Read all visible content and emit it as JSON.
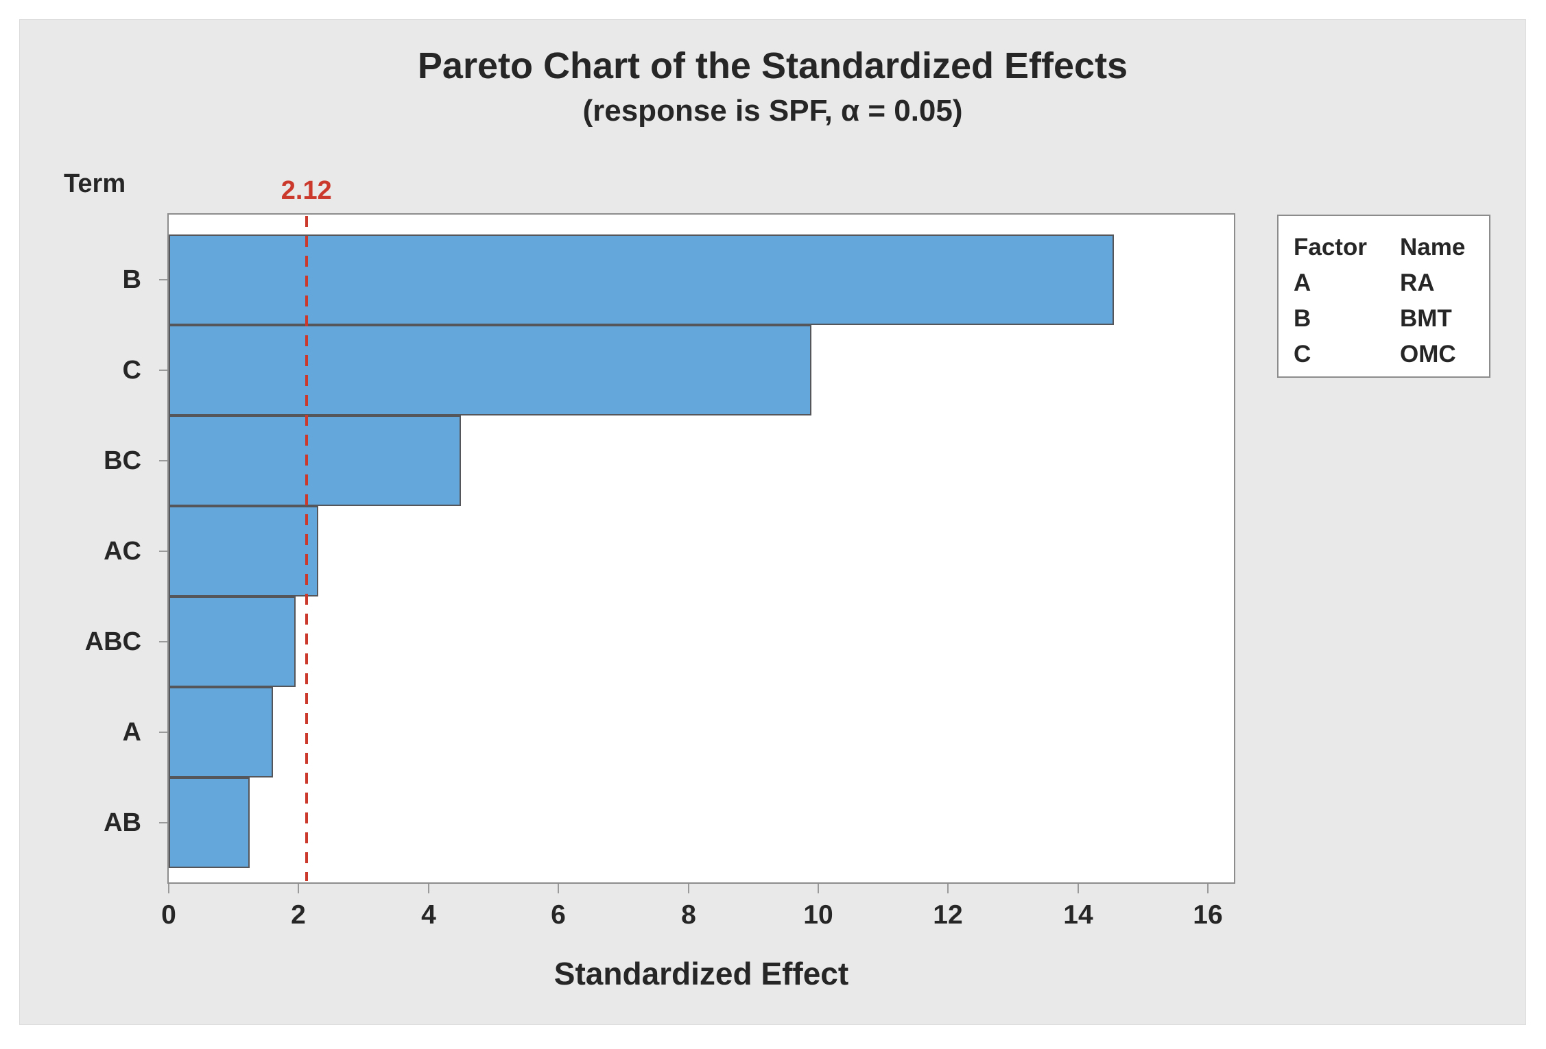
{
  "chart_data": {
    "type": "bar",
    "orientation": "horizontal",
    "title": "Pareto Chart of the Standardized Effects",
    "subtitle": "(response is SPF, α = 0.05)",
    "y_axis_title": "Term",
    "x_axis_title": "Standardized Effect",
    "categories": [
      "B",
      "C",
      "BC",
      "AC",
      "ABC",
      "A",
      "AB"
    ],
    "values": [
      14.55,
      9.9,
      4.5,
      2.3,
      1.95,
      1.6,
      1.25
    ],
    "x_ticks": [
      0,
      2,
      4,
      6,
      8,
      10,
      12,
      14,
      16
    ],
    "xlim": [
      0,
      16.4
    ],
    "grid": "off",
    "reference_line": {
      "value": 2.12,
      "label": "2.12"
    },
    "colors": {
      "bar_fill": "#64A7DB",
      "bar_border": "#54565A",
      "reference": "#CB392C",
      "axis": "#9A9A9A",
      "text": "#262626",
      "plot_background": "#FFFFFF",
      "chart_background": "#E9E9E9"
    }
  },
  "legend": {
    "columns": [
      "Factor",
      "Name"
    ],
    "rows": [
      {
        "factor": "A",
        "name": "RA"
      },
      {
        "factor": "B",
        "name": "BMT"
      },
      {
        "factor": "C",
        "name": "OMC"
      }
    ]
  }
}
